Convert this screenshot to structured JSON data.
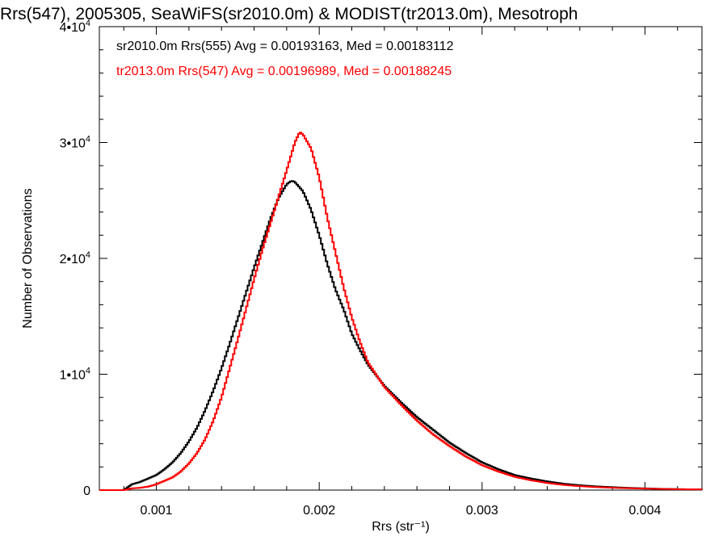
{
  "chart_data": {
    "type": "line",
    "title": "Rrs(547), 2005305, SeaWiFS(sr2010.0m) & MODIST(tr2013.0m), Mesotroph",
    "xlabel": "Rrs (str⁻¹)",
    "ylabel": "Number of Observations",
    "xlim": [
      0.00065,
      0.00435
    ],
    "ylim": [
      0,
      40000
    ],
    "x_ticks": [
      {
        "value": 0.001,
        "label": "0.001"
      },
      {
        "value": 0.002,
        "label": "0.002"
      },
      {
        "value": 0.003,
        "label": "0.003"
      },
      {
        "value": 0.004,
        "label": "0.004"
      }
    ],
    "y_ticks": [
      {
        "value": 0,
        "base": "0",
        "exp": ""
      },
      {
        "value": 10000,
        "base": "1•10",
        "exp": "4"
      },
      {
        "value": 20000,
        "base": "2•10",
        "exp": "4"
      },
      {
        "value": 30000,
        "base": "3•10",
        "exp": "4"
      },
      {
        "value": 40000,
        "base": "4•10",
        "exp": "4"
      }
    ],
    "grid": false,
    "legend_placement": "top-left",
    "colors": {
      "sr": "#000000",
      "tr": "#ff0000"
    },
    "series": [
      {
        "name": "sr2010.0m Rrs(555) Avg = 0.00193163, Med = 0.00183112",
        "color": "#000000",
        "points": [
          [
            0.0008,
            0
          ],
          [
            0.00085,
            500
          ],
          [
            0.0009,
            700
          ],
          [
            0.00095,
            1000
          ],
          [
            0.001,
            1300
          ],
          [
            0.00105,
            1800
          ],
          [
            0.0011,
            2400
          ],
          [
            0.00115,
            3200
          ],
          [
            0.0012,
            4200
          ],
          [
            0.00125,
            5400
          ],
          [
            0.0013,
            6900
          ],
          [
            0.00135,
            8600
          ],
          [
            0.0014,
            10500
          ],
          [
            0.00145,
            12600
          ],
          [
            0.0015,
            14800
          ],
          [
            0.00155,
            17000
          ],
          [
            0.0016,
            19200
          ],
          [
            0.00165,
            21300
          ],
          [
            0.0017,
            23400
          ],
          [
            0.00175,
            25200
          ],
          [
            0.0018,
            26400
          ],
          [
            0.00183,
            26700
          ],
          [
            0.00185,
            26600
          ],
          [
            0.0019,
            25800
          ],
          [
            0.00195,
            24200
          ],
          [
            0.002,
            22000
          ],
          [
            0.00205,
            19500
          ],
          [
            0.0021,
            17300
          ],
          [
            0.00215,
            15600
          ],
          [
            0.0022,
            13500
          ],
          [
            0.00225,
            12100
          ],
          [
            0.0023,
            10800
          ],
          [
            0.0024,
            9000
          ],
          [
            0.0025,
            7600
          ],
          [
            0.0026,
            6300
          ],
          [
            0.0027,
            5200
          ],
          [
            0.0028,
            4100
          ],
          [
            0.0029,
            3200
          ],
          [
            0.003,
            2400
          ],
          [
            0.0031,
            1800
          ],
          [
            0.0032,
            1300
          ],
          [
            0.0033,
            1000
          ],
          [
            0.0034,
            750
          ],
          [
            0.0035,
            550
          ],
          [
            0.0036,
            420
          ],
          [
            0.0037,
            320
          ],
          [
            0.0038,
            250
          ],
          [
            0.0039,
            190
          ],
          [
            0.004,
            150
          ],
          [
            0.0041,
            110
          ],
          [
            0.0042,
            80
          ],
          [
            0.00435,
            60
          ]
        ]
      },
      {
        "name": "tr2013.0m Rrs(547) Avg = 0.00196989, Med = 0.00188245",
        "color": "#ff0000",
        "points": [
          [
            0.0008,
            0
          ],
          [
            0.00085,
            150
          ],
          [
            0.0009,
            200
          ],
          [
            0.00095,
            300
          ],
          [
            0.001,
            500
          ],
          [
            0.00105,
            800
          ],
          [
            0.0011,
            1100
          ],
          [
            0.00115,
            1600
          ],
          [
            0.0012,
            2300
          ],
          [
            0.00125,
            3200
          ],
          [
            0.0013,
            4400
          ],
          [
            0.00135,
            6000
          ],
          [
            0.0014,
            8000
          ],
          [
            0.00145,
            10500
          ],
          [
            0.0015,
            13000
          ],
          [
            0.00155,
            15600
          ],
          [
            0.0016,
            18200
          ],
          [
            0.00165,
            20700
          ],
          [
            0.0017,
            23000
          ],
          [
            0.00175,
            25300
          ],
          [
            0.0018,
            27600
          ],
          [
            0.00185,
            30000
          ],
          [
            0.00188,
            30900
          ],
          [
            0.0019,
            30700
          ],
          [
            0.00195,
            29500
          ],
          [
            0.002,
            27000
          ],
          [
            0.00205,
            23500
          ],
          [
            0.0021,
            20500
          ],
          [
            0.00215,
            17500
          ],
          [
            0.0022,
            14900
          ],
          [
            0.00225,
            12800
          ],
          [
            0.0023,
            11000
          ],
          [
            0.0024,
            8900
          ],
          [
            0.0025,
            7400
          ],
          [
            0.0026,
            6000
          ],
          [
            0.0027,
            4800
          ],
          [
            0.0028,
            3800
          ],
          [
            0.0029,
            2900
          ],
          [
            0.003,
            2150
          ],
          [
            0.0031,
            1600
          ],
          [
            0.0032,
            1150
          ],
          [
            0.0033,
            850
          ],
          [
            0.0034,
            620
          ],
          [
            0.0035,
            450
          ],
          [
            0.0036,
            340
          ],
          [
            0.0037,
            260
          ],
          [
            0.0038,
            200
          ],
          [
            0.0039,
            160
          ],
          [
            0.004,
            130
          ],
          [
            0.0041,
            100
          ],
          [
            0.0042,
            80
          ],
          [
            0.00435,
            60
          ]
        ]
      }
    ]
  }
}
